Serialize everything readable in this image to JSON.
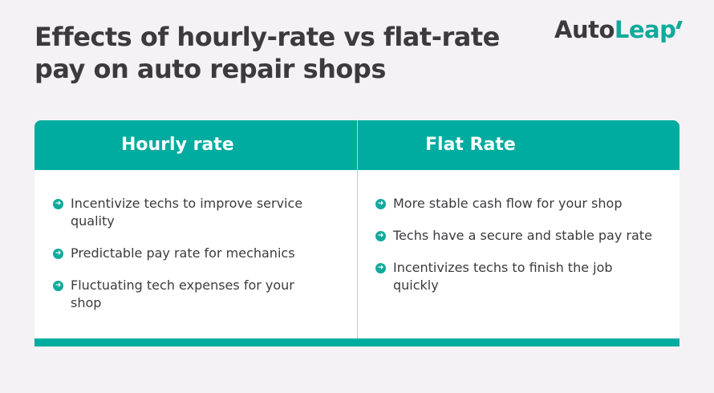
{
  "title_line1": "Effects of hourly-rate vs flat-rate",
  "title_line2": "pay on auto repair shops",
  "logo": {
    "part1": "Auto",
    "part2": "Leap"
  },
  "accent_color": "#00ac9f",
  "columns": [
    {
      "header": "Hourly rate",
      "items": [
        "Incentivize techs to improve service quality",
        "Predictable pay rate for mechanics",
        "Fluctuating tech expenses for your shop"
      ]
    },
    {
      "header": "Flat Rate",
      "items": [
        "More stable cash flow for your shop",
        "Techs have a secure and stable pay rate",
        "Incentivizes techs to finish the job quickly"
      ]
    }
  ]
}
